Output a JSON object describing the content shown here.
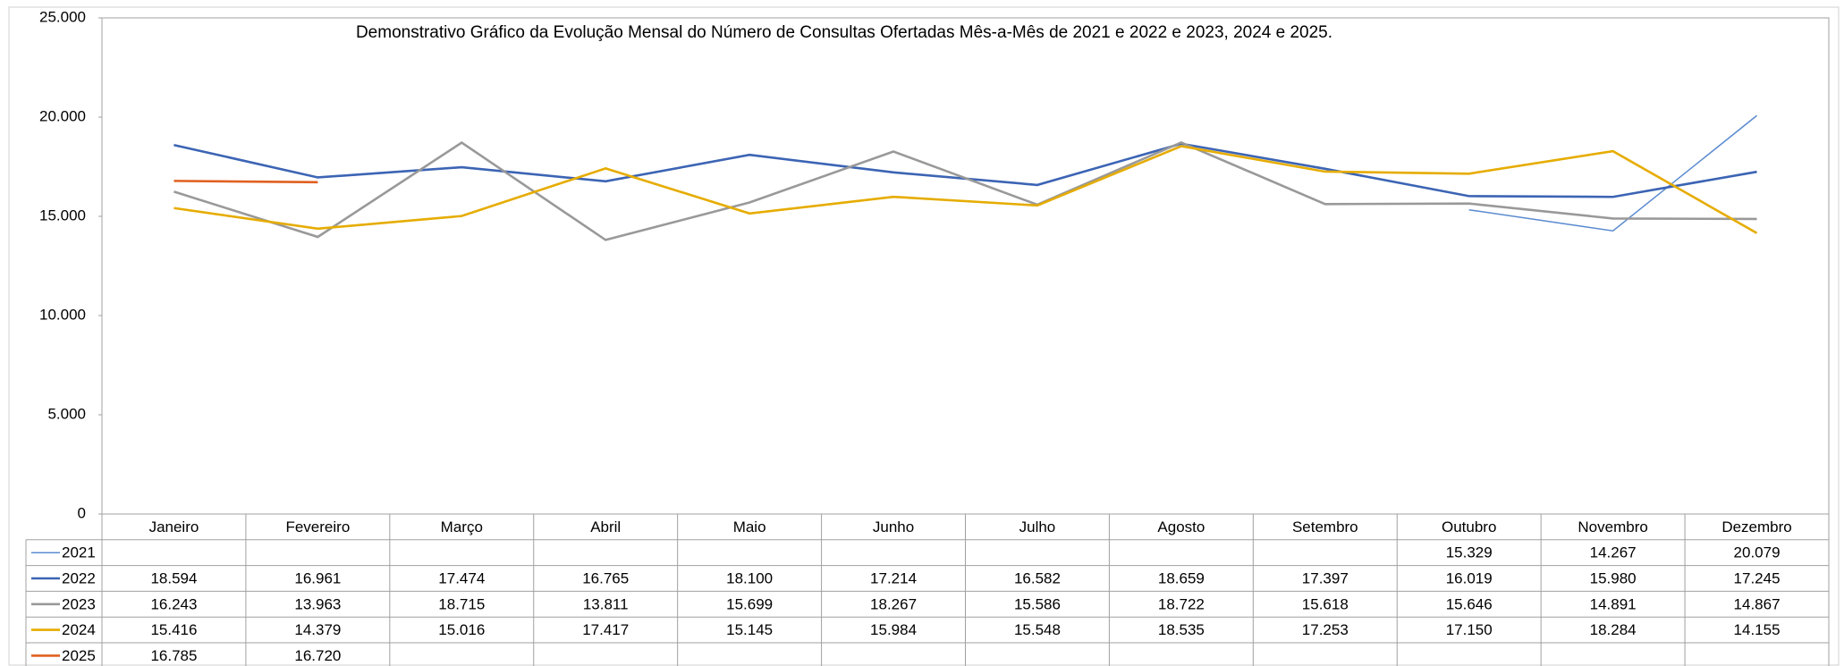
{
  "chart_data": {
    "type": "line",
    "title": "Demonstrativo Gráfico da Evolução Mensal do Número de Consultas Ofertadas Mês-a-Mês de 2021 e 2022 e 2023, 2024 e 2025.",
    "categories": [
      "Janeiro",
      "Fevereiro",
      "Março",
      "Abril",
      "Maio",
      "Junho",
      "Julho",
      "Agosto",
      "Setembro",
      "Outubro",
      "Novembro",
      "Dezembro"
    ],
    "ylim": [
      0,
      25000
    ],
    "yticks": [
      {
        "value": 0,
        "label": "0"
      },
      {
        "value": 5000,
        "label": "5.000"
      },
      {
        "value": 10000,
        "label": "10.000"
      },
      {
        "value": 15000,
        "label": "15.000"
      },
      {
        "value": 20000,
        "label": "20.000"
      },
      {
        "value": 25000,
        "label": "25.000"
      }
    ],
    "grid": false,
    "series": [
      {
        "name": "2021",
        "color": "#5b8bd0",
        "values": [
          null,
          null,
          null,
          null,
          null,
          null,
          null,
          null,
          null,
          15329,
          14267,
          20079
        ],
        "value_labels": [
          null,
          null,
          null,
          null,
          null,
          null,
          null,
          null,
          null,
          "15.329",
          "14.267",
          "20.079"
        ]
      },
      {
        "name": "2022",
        "color": "#3c64b4",
        "values": [
          18594,
          16961,
          17474,
          16765,
          18100,
          17214,
          16582,
          18659,
          17397,
          16019,
          15980,
          17245
        ],
        "value_labels": [
          "18.594",
          "16.961",
          "17.474",
          "16.765",
          "18.100",
          "17.214",
          "16.582",
          "18.659",
          "17.397",
          "16.019",
          "15.980",
          "17.245"
        ]
      },
      {
        "name": "2023",
        "color": "#999999",
        "values": [
          16243,
          13963,
          18715,
          13811,
          15699,
          18267,
          15586,
          18722,
          15618,
          15646,
          14891,
          14867
        ],
        "value_labels": [
          "16.243",
          "13.963",
          "18.715",
          "13.811",
          "15.699",
          "18.267",
          "15.586",
          "18.722",
          "15.618",
          "15.646",
          "14.891",
          "14.867"
        ]
      },
      {
        "name": "2024",
        "color": "#e6ac00",
        "values": [
          15416,
          14379,
          15016,
          17417,
          15145,
          15984,
          15548,
          18535,
          17253,
          17150,
          18284,
          14155
        ],
        "value_labels": [
          "15.416",
          "14.379",
          "15.016",
          "17.417",
          "15.145",
          "15.984",
          "15.548",
          "18.535",
          "17.253",
          "17.150",
          "18.284",
          "14.155"
        ]
      },
      {
        "name": "2025",
        "color": "#e06020",
        "values": [
          16785,
          16720,
          null,
          null,
          null,
          null,
          null,
          null,
          null,
          null,
          null,
          null
        ],
        "value_labels": [
          "16.785",
          "16.720",
          null,
          null,
          null,
          null,
          null,
          null,
          null,
          null,
          null,
          null
        ]
      }
    ]
  }
}
